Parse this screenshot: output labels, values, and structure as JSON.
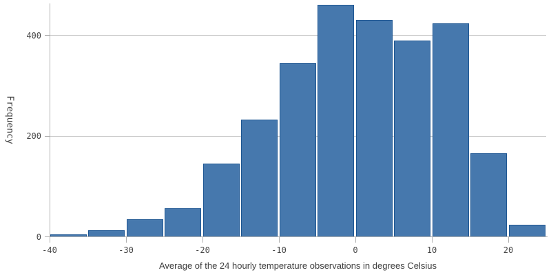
{
  "chart_data": {
    "type": "bar",
    "subtype": "histogram",
    "title": "",
    "xlabel": "Average of the 24 hourly temperature observations in degrees Celsius",
    "ylabel": "Frequency",
    "xlim": [
      -40,
      25
    ],
    "ylim": [
      0,
      465
    ],
    "bin_width": 5,
    "grid": "horizontal",
    "legend": "none",
    "bins": [
      {
        "start": -40,
        "end": -35,
        "value": 5
      },
      {
        "start": -35,
        "end": -30,
        "value": 13
      },
      {
        "start": -30,
        "end": -25,
        "value": 35
      },
      {
        "start": -25,
        "end": -20,
        "value": 57
      },
      {
        "start": -20,
        "end": -15,
        "value": 146
      },
      {
        "start": -15,
        "end": -10,
        "value": 234
      },
      {
        "start": -10,
        "end": -5,
        "value": 346
      },
      {
        "start": -5,
        "end": 0,
        "value": 462
      },
      {
        "start": 0,
        "end": 5,
        "value": 432
      },
      {
        "start": 5,
        "end": 10,
        "value": 390
      },
      {
        "start": 10,
        "end": 15,
        "value": 425
      },
      {
        "start": 15,
        "end": 20,
        "value": 166
      },
      {
        "start": 20,
        "end": 25,
        "value": 25
      }
    ],
    "x_ticks": [
      {
        "value": -40,
        "label": "-40"
      },
      {
        "value": -30,
        "label": "-30"
      },
      {
        "value": -20,
        "label": "-20"
      },
      {
        "value": -10,
        "label": "-10"
      },
      {
        "value": 0,
        "label": "0"
      },
      {
        "value": 10,
        "label": "10"
      },
      {
        "value": 20,
        "label": "20"
      }
    ],
    "y_ticks": [
      {
        "value": 0,
        "label": "0"
      },
      {
        "value": 200,
        "label": "200"
      },
      {
        "value": 400,
        "label": "400"
      }
    ],
    "colors": {
      "bar_fill": "#4678ad",
      "bar_border": "#1e5692",
      "gridline": "#cccccc",
      "axis": "#b0b0b0",
      "tick_text": "#454545",
      "title_text": "#3d3d3d",
      "background": "#ffffff"
    }
  }
}
